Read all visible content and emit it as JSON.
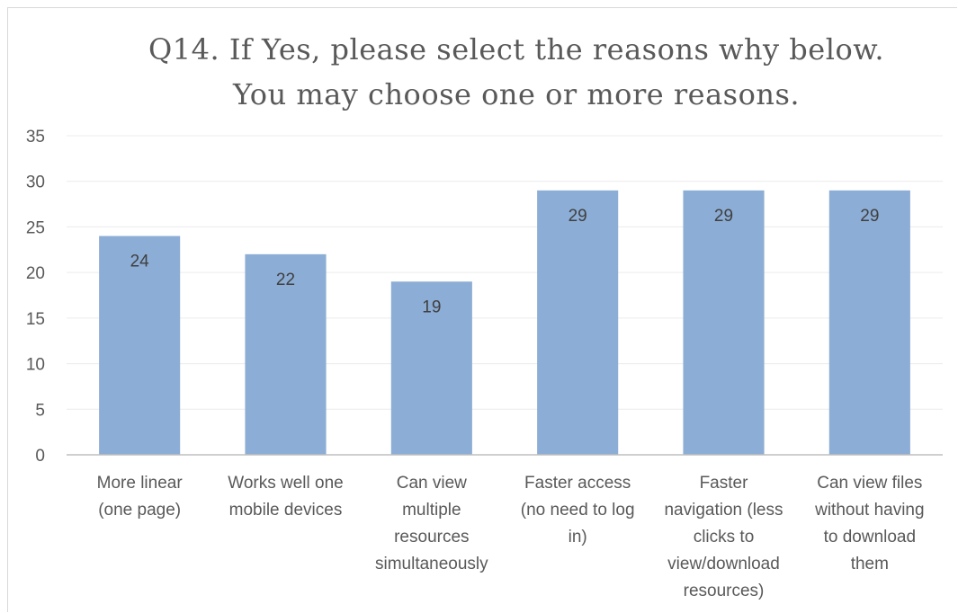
{
  "chart_data": {
    "type": "bar",
    "title_lines": [
      "Q14. If Yes, please select the reasons why below.",
      "You may choose one or more reasons."
    ],
    "categories": [
      "More linear\n(one page)",
      "Works well one\nmobile  devices",
      "Can view\nmultiple\nresources\nsimultaneously",
      "Faster access\n(no need to log\nin)",
      "Faster\nnavigation  (less\nclicks to\nview/download\nresources)",
      "Can view files\nwithout having\nto download\nthem"
    ],
    "values": [
      24,
      22,
      19,
      29,
      29,
      29
    ],
    "ylim": [
      0,
      35
    ],
    "yticks": [
      "0",
      "5",
      "10",
      "15",
      "20",
      "25",
      "30",
      "35"
    ],
    "grid": true,
    "bar_color": "#8cadd5",
    "xlabel": "",
    "ylabel": ""
  }
}
